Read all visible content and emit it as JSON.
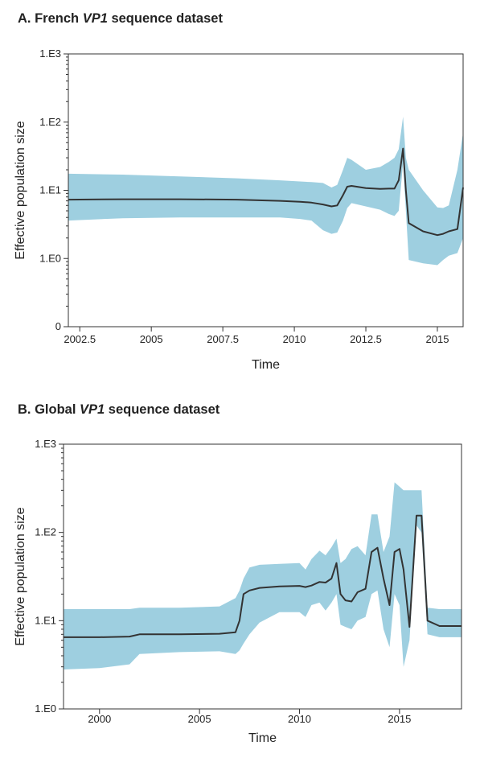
{
  "panels": [
    {
      "title_prefix": "A. French ",
      "title_gene": "VP1",
      "title_suffix": " sequence dataset"
    },
    {
      "title_prefix": "B. Global ",
      "title_gene": "VP1",
      "title_suffix": " sequence dataset"
    }
  ],
  "colors": {
    "band": "#9ecfe0",
    "median": "#333333",
    "axis": "#333333"
  },
  "chart_data": [
    {
      "type": "area",
      "title": "A. French VP1 sequence dataset",
      "xlabel": "Time",
      "ylabel": "Effective population size",
      "y_scale": "log",
      "xlim": [
        2002.1,
        2015.9
      ],
      "ylim_log10": [
        -1,
        3
      ],
      "xticks": [
        2002.5,
        2005,
        2007.5,
        2010,
        2012.5,
        2015
      ],
      "xtick_labels": [
        "2002.5",
        "2005",
        "2007.5",
        "2010",
        "2012.5",
        "2015"
      ],
      "yticks_log10": [
        -1,
        0,
        1,
        2,
        3
      ],
      "ytick_labels": [
        "0",
        "1.E0",
        "1.E1",
        "1.E2",
        "1.E3"
      ],
      "grid": false,
      "series": [
        {
          "role": "median",
          "x": [
            2002.1,
            2004.0,
            2006.0,
            2008.0,
            2009.5,
            2010.2,
            2010.6,
            2011.0,
            2011.3,
            2011.5,
            2011.7,
            2011.85,
            2012.0,
            2012.5,
            2013.0,
            2013.3,
            2013.5,
            2013.65,
            2013.8,
            2013.9,
            2014.0,
            2014.5,
            2015.0,
            2015.2,
            2015.4,
            2015.7,
            2015.9
          ],
          "y": [
            7.3,
            7.4,
            7.4,
            7.3,
            7.0,
            6.8,
            6.6,
            6.2,
            5.8,
            6.0,
            8.5,
            11.3,
            11.6,
            10.8,
            10.5,
            10.6,
            10.6,
            14.0,
            41.0,
            10.0,
            3.3,
            2.5,
            2.2,
            2.3,
            2.5,
            2.7,
            11.0
          ]
        },
        {
          "role": "lower",
          "x": [
            2002.1,
            2004.0,
            2006.0,
            2008.0,
            2009.5,
            2010.2,
            2010.6,
            2011.0,
            2011.3,
            2011.5,
            2011.7,
            2011.85,
            2012.0,
            2012.5,
            2013.0,
            2013.3,
            2013.5,
            2013.65,
            2013.8,
            2013.9,
            2014.0,
            2014.5,
            2015.0,
            2015.2,
            2015.4,
            2015.7,
            2015.9
          ],
          "y": [
            3.6,
            3.9,
            4.0,
            4.0,
            4.0,
            3.8,
            3.6,
            2.6,
            2.3,
            2.4,
            3.6,
            5.5,
            6.5,
            5.8,
            5.2,
            4.5,
            4.2,
            5.0,
            25.0,
            5.0,
            0.95,
            0.85,
            0.8,
            0.95,
            1.1,
            1.2,
            2.0
          ]
        },
        {
          "role": "upper",
          "x": [
            2002.1,
            2004.0,
            2006.0,
            2008.0,
            2009.5,
            2010.2,
            2010.6,
            2011.0,
            2011.3,
            2011.5,
            2011.7,
            2011.85,
            2012.0,
            2012.5,
            2013.0,
            2013.3,
            2013.5,
            2013.65,
            2013.8,
            2013.9,
            2014.0,
            2014.5,
            2015.0,
            2015.2,
            2015.4,
            2015.7,
            2015.9
          ],
          "y": [
            17.5,
            17.0,
            16.0,
            15.0,
            14.0,
            13.5,
            13.2,
            12.8,
            11.0,
            12.0,
            20.0,
            30.0,
            28.0,
            20.0,
            22.0,
            26.0,
            30.0,
            40.0,
            120.0,
            30.0,
            20.0,
            10.0,
            5.6,
            5.5,
            6.0,
            20.0,
            70.0
          ]
        }
      ]
    },
    {
      "type": "area",
      "title": "B. Global VP1 sequence dataset",
      "xlabel": "Time",
      "ylabel": "Effective population size",
      "y_scale": "log",
      "xlim": [
        1998.2,
        2018.1
      ],
      "ylim_log10": [
        0,
        3
      ],
      "xticks": [
        2000,
        2005,
        2010,
        2015
      ],
      "xtick_labels": [
        "2000",
        "2005",
        "2010",
        "2015"
      ],
      "yticks_log10": [
        0,
        1,
        2,
        3
      ],
      "ytick_labels": [
        "1.E0",
        "1.E1",
        "1.E2",
        "1.E3"
      ],
      "grid": false,
      "series": [
        {
          "role": "median",
          "x": [
            1998.2,
            2000.0,
            2001.5,
            2002.0,
            2004.0,
            2006.0,
            2006.8,
            2007.0,
            2007.2,
            2007.5,
            2008.0,
            2009.0,
            2010.0,
            2010.3,
            2010.6,
            2011.0,
            2011.3,
            2011.6,
            2011.85,
            2012.05,
            2012.3,
            2012.6,
            2012.9,
            2013.3,
            2013.6,
            2013.9,
            2014.2,
            2014.5,
            2014.75,
            2015.0,
            2015.2,
            2015.5,
            2015.85,
            2016.1,
            2016.4,
            2017.0,
            2018.1
          ],
          "y": [
            6.5,
            6.5,
            6.6,
            7.0,
            7.0,
            7.1,
            7.4,
            10.0,
            20.0,
            22.0,
            23.5,
            24.5,
            24.8,
            24.0,
            25.0,
            27.5,
            27.0,
            30.0,
            45.0,
            20.0,
            17.0,
            16.5,
            21.0,
            23.0,
            60.0,
            67.0,
            30.0,
            15.0,
            60.0,
            65.0,
            38.0,
            8.5,
            155.0,
            155.0,
            10.0,
            8.7,
            8.7
          ]
        },
        {
          "role": "lower",
          "x": [
            1998.2,
            2000.0,
            2001.5,
            2002.0,
            2004.0,
            2006.0,
            2006.8,
            2007.0,
            2007.2,
            2007.5,
            2008.0,
            2009.0,
            2010.0,
            2010.3,
            2010.6,
            2011.0,
            2011.3,
            2011.6,
            2011.85,
            2012.05,
            2012.3,
            2012.6,
            2012.9,
            2013.3,
            2013.6,
            2013.9,
            2014.2,
            2014.5,
            2014.75,
            2015.0,
            2015.2,
            2015.5,
            2015.85,
            2016.1,
            2016.4,
            2017.0,
            2018.1
          ],
          "y": [
            2.8,
            2.9,
            3.2,
            4.2,
            4.4,
            4.5,
            4.2,
            4.6,
            5.5,
            7.0,
            9.5,
            12.5,
            12.5,
            11.0,
            15.0,
            16.0,
            13.0,
            16.0,
            20.0,
            9.0,
            8.5,
            8.0,
            10.0,
            11.0,
            20.0,
            22.0,
            8.0,
            5.0,
            20.0,
            15.0,
            3.0,
            6.0,
            120.0,
            100.0,
            7.0,
            6.5,
            6.5
          ]
        },
        {
          "role": "upper",
          "x": [
            1998.2,
            2000.0,
            2001.5,
            2002.0,
            2004.0,
            2006.0,
            2006.8,
            2007.0,
            2007.2,
            2007.5,
            2008.0,
            2009.0,
            2010.0,
            2010.3,
            2010.6,
            2011.0,
            2011.3,
            2011.6,
            2011.85,
            2012.05,
            2012.3,
            2012.6,
            2012.9,
            2013.3,
            2013.6,
            2013.9,
            2014.2,
            2014.5,
            2014.75,
            2015.0,
            2015.2,
            2015.5,
            2015.85,
            2016.1,
            2016.4,
            2017.0,
            2018.1
          ],
          "y": [
            13.5,
            13.5,
            13.5,
            14.0,
            14.0,
            14.5,
            18.0,
            22.0,
            30.0,
            40.0,
            43.0,
            44.0,
            45.0,
            38.0,
            50.0,
            62.0,
            55.0,
            68.0,
            85.0,
            45.0,
            50.0,
            65.0,
            70.0,
            55.0,
            160.0,
            160.0,
            60.0,
            90.0,
            370.0,
            330.0,
            300.0,
            300.0,
            300.0,
            300.0,
            14.0,
            13.5,
            13.5
          ]
        }
      ]
    }
  ]
}
